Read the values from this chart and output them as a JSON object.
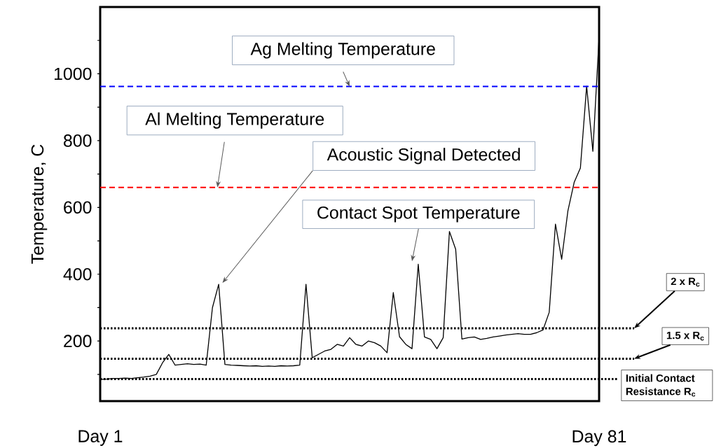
{
  "chart_data": {
    "type": "line",
    "ylabel": "Temperature, C",
    "categories": [
      "Day 1",
      null,
      null,
      null,
      null,
      null,
      null,
      null,
      null,
      null,
      null,
      null,
      null,
      null,
      null,
      null,
      null,
      null,
      null,
      null,
      null,
      null,
      null,
      null,
      null,
      null,
      null,
      null,
      null,
      null,
      null,
      null,
      null,
      null,
      null,
      null,
      null,
      null,
      null,
      null,
      null,
      null,
      null,
      null,
      null,
      null,
      null,
      null,
      null,
      null,
      null,
      null,
      null,
      null,
      null,
      null,
      null,
      null,
      null,
      null,
      null,
      null,
      null,
      null,
      null,
      null,
      null,
      null,
      null,
      null,
      null,
      null,
      null,
      null,
      null,
      null,
      null,
      null,
      null,
      null,
      "Day 81"
    ],
    "series": [
      {
        "color": "#000000",
        "values": [
          85,
          86,
          88,
          88,
          89,
          88,
          90,
          92,
          95,
          100,
          135,
          160,
          128,
          130,
          132,
          130,
          131,
          128,
          300,
          370,
          130,
          128,
          127,
          126,
          125,
          126,
          124,
          125,
          124,
          126,
          125,
          126,
          128,
          370,
          150,
          160,
          170,
          175,
          190,
          185,
          210,
          190,
          185,
          200,
          195,
          185,
          165,
          345,
          213,
          190,
          177,
          430,
          212,
          205,
          177,
          210,
          528,
          475,
          206,
          210,
          212,
          205,
          208,
          212,
          215,
          218,
          220,
          222,
          220,
          220,
          225,
          233,
          286,
          550,
          445,
          590,
          675,
          718,
          963,
          768,
          1111
        ]
      }
    ],
    "ylim": [
      20,
      1200
    ],
    "yticks": [
      {
        "value": 100,
        "label": null
      },
      200,
      {
        "value": 300,
        "label": null
      },
      400,
      {
        "value": 500,
        "label": null
      },
      600,
      {
        "value": 700,
        "label": null
      },
      800,
      {
        "value": 900,
        "label": null
      },
      1000,
      {
        "value": 1100,
        "label": null
      }
    ],
    "ref_lines": [
      {
        "axis": "y",
        "value": 962,
        "label": "Ag Melting Temperature",
        "color": "#0000ff",
        "line_style": "dashed"
      },
      {
        "axis": "y",
        "value": 660,
        "label": "Al Melting Temperature",
        "color": "#ff0000",
        "line_style": "dashed"
      },
      {
        "axis": "y",
        "value": 238,
        "label": "2 x R$_{c}$",
        "color": "#000000",
        "line_style": "dotted"
      },
      {
        "axis": "y",
        "value": 147,
        "label": "1.5 x R$_{c}$",
        "color": "#000000",
        "line_style": "dotted"
      },
      {
        "axis": "y",
        "value": 86,
        "label": "Initial Contact Resistance R$_{c}$",
        "color": "#000000",
        "line_style": "dotted"
      }
    ],
    "annotations": [
      "Acoustic Signal Detected",
      "Contact Spot Temperature"
    ],
    "grid": false,
    "marker": "none",
    "line_style": "solid"
  }
}
